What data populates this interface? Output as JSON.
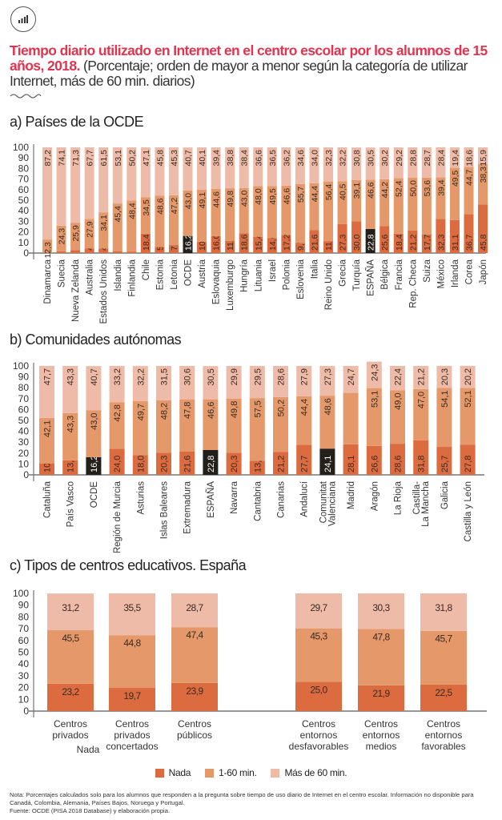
{
  "header": {
    "icon": "bar-chart-icon",
    "title_highlight": "Tiempo diario utilizado en Internet en el centro escolar por los alumnos de 15 años, 2018.",
    "title_rest": " (Porcentaje; orden de mayor a menor según la categoría de utilizar Internet, más de 60 min. diarios)"
  },
  "colors": {
    "nada": "#dc6b40",
    "min_1_60": "#e5996a",
    "mas_60": "#efbba9",
    "highlight": "#231f1a",
    "title_accent": "#e3344f"
  },
  "legend": {
    "items": [
      {
        "label": "Nada",
        "key": "nada"
      },
      {
        "label": "1-60 min.",
        "key": "min_1_60"
      },
      {
        "label": "Más de 60 min.",
        "key": "mas_60"
      }
    ]
  },
  "notes": {
    "nota": "Nota: Porcentajes calculados solo para los alumnos que responden a la pregunta sobre tiempo de uso diario de Internet en el centro escolar. Información no disponible para Canadá, Colombia, Alemania, Países Bajos, Noruega y Portugal.",
    "fuente": "Fuente: OCDE (PISA 2018 Database) y elaboración propia."
  },
  "chart_data": [
    {
      "type": "bar",
      "stacked": true,
      "title": "a) Países de la OCDE",
      "ylim": [
        0,
        100
      ],
      "yticks": [
        0,
        10,
        20,
        30,
        40,
        50,
        60,
        70,
        80,
        90,
        100
      ],
      "categories": [
        "Dinamarca",
        "Suecia",
        "Nueva Zelanda",
        "Australia",
        "Estados Unidos",
        "Islandia",
        "Finlandia",
        "Chile",
        "Estonia",
        "Letonia",
        "OCDE",
        "Austria",
        "Eslovaquia",
        "Luxemburgo",
        "Hungría",
        "Lituania",
        "Israel",
        "Polonia",
        "Eslovenia",
        "Italia",
        "Reino Unido",
        "Grecia",
        "Turquía",
        "ESPAÑA",
        "Bélgica",
        "Francia",
        "Rep. Checa",
        "Suiza",
        "México",
        "Irlanda",
        "Corea",
        "Japón"
      ],
      "highlight": [
        "OCDE",
        "ESPAÑA"
      ],
      "series": [
        {
          "name": "Nada",
          "values": [
            0.5,
            1.6,
            2.8,
            4.4,
            4.4,
            1.5,
            1.4,
            18.4,
            5.6,
            7.5,
            16.2,
            10.8,
            16.0,
            11.5,
            18.6,
            15.4,
            14.0,
            17.2,
            9.7,
            21.6,
            11.3,
            27.3,
            30.0,
            22.8,
            25.6,
            18.4,
            21.2,
            17.7,
            32.3,
            31.1,
            36.7,
            45.8
          ],
          "labels": [
            null,
            null,
            null,
            "4,4",
            "4,4",
            null,
            null,
            "18,4",
            "5,6",
            "7,5",
            "16,2",
            "10,8",
            "16,0",
            "11,5",
            "18,6",
            "15,4",
            "14,0",
            "17,2",
            "9,7",
            "21,6",
            "11,3",
            "27,3",
            "30,0",
            "22,8",
            "25,6",
            "18,4",
            "21,2",
            "17,7",
            "32,3",
            "31,1",
            "36,7",
            "45,8"
          ]
        },
        {
          "name": "1-60 min.",
          "values": [
            12.3,
            24.3,
            25.9,
            27.9,
            34.1,
            45.4,
            48.4,
            34.5,
            48.6,
            47.2,
            43.0,
            49.1,
            44.6,
            49.8,
            43.0,
            48.0,
            49.5,
            46.6,
            55.7,
            44.4,
            56.4,
            40.5,
            39.1,
            46.6,
            44.2,
            52.4,
            50.0,
            53.6,
            39.4,
            49.5,
            44.7,
            38.3
          ],
          "labels": [
            "12,3",
            "24,3",
            "25,9",
            "27,9",
            "34,1",
            "45,4",
            "48,4",
            "34,5",
            "48,6",
            "47,2",
            "43,0",
            "49,1",
            "44,6",
            "49,8",
            "43,0",
            "48,0",
            "49,5",
            "46,6",
            "55,7",
            "44,4",
            "56,4",
            "40,5",
            "39,1",
            "46,6",
            "44,2",
            "52,4",
            "50,0",
            "53,6",
            "39,4",
            "49,5",
            "44,7",
            "38,3"
          ]
        },
        {
          "name": "Más de 60 min.",
          "values": [
            87.2,
            74.1,
            71.3,
            67.7,
            61.5,
            53.1,
            50.2,
            47.1,
            45.8,
            45.3,
            40.7,
            40.1,
            39.4,
            38.8,
            38.4,
            36.6,
            36.5,
            36.2,
            34.6,
            34.0,
            32.3,
            32.2,
            30.8,
            30.5,
            30.2,
            29.2,
            28.8,
            28.7,
            28.4,
            19.4,
            18.6,
            15.9
          ],
          "labels": [
            "87,2",
            "74,1",
            "71,3",
            "67,7",
            "61,5",
            "53,1",
            "50,2",
            "47,1",
            "45,8",
            "45,3",
            "40,7",
            "40,1",
            "39,4",
            "38,8",
            "38,4",
            "36,6",
            "36,5",
            "36,2",
            "34,6",
            "34,0",
            "32,3",
            "32,2",
            "30,8",
            "30,5",
            "30,2",
            "29,2",
            "28,8",
            "28,7",
            "28,4",
            "19,4",
            "18,6",
            "15,9"
          ]
        }
      ]
    },
    {
      "type": "bar",
      "stacked": true,
      "title": "b) Comunidades autónomas",
      "ylim": [
        0,
        100
      ],
      "yticks": [
        0,
        10,
        20,
        30,
        40,
        50,
        60,
        70,
        80,
        90,
        100
      ],
      "categories": [
        "Cataluña",
        "País Vasco",
        "OCDE",
        "Región de Murcia",
        "Asturias",
        "Islas Baleares",
        "Extremadura",
        "ESPAÑA",
        "Navarra",
        "Cantabria",
        "Canarias",
        "Andalucí",
        "Comunitat Valenciana",
        "Madrid",
        "Aragón",
        "La Rioja",
        "Castilla-La Mancha",
        "Galicia",
        "Castilla y León"
      ],
      "highlight": [
        "OCDE",
        "ESPAÑA",
        "Comunitat Valenciana"
      ],
      "series": [
        {
          "name": "Nada",
          "values": [
            10.3,
            13.4,
            16.2,
            24.0,
            18.0,
            20.3,
            21.6,
            22.8,
            20.3,
            13.0,
            21.2,
            27.7,
            24.1,
            28.1,
            26.6,
            28.6,
            31.8,
            25.7,
            27.8
          ],
          "labels": [
            "10,3",
            "13,4",
            "16,2",
            "24,0",
            "18,0",
            "20,3",
            "21,6",
            "22,8",
            "20,3",
            "13,0",
            "21,2",
            "27,7",
            "24,1",
            "28,1",
            "26,6",
            "28,6",
            "31,8",
            "25,7",
            "27,8"
          ]
        },
        {
          "name": "1-60 min.",
          "values": [
            42.1,
            43.3,
            43.0,
            42.8,
            49.7,
            48.2,
            47.8,
            46.6,
            49.8,
            57.5,
            50.2,
            44.4,
            48.6,
            47.2,
            53.1,
            49.0,
            47.0,
            54.1,
            52.1
          ],
          "labels": [
            "42,1",
            "43,3",
            "43,0",
            "42,8",
            "49,7",
            "48,2",
            "47,8",
            "46,6",
            "49,8",
            "57,5",
            "50,2",
            "44,4",
            "48,6",
            null,
            "53,1",
            "49,0",
            "47,0",
            "54,1",
            "52,1"
          ]
        },
        {
          "name": "Más de 60 min.",
          "values": [
            47.7,
            43.3,
            40.7,
            33.2,
            32.2,
            31.5,
            30.6,
            30.5,
            29.9,
            29.5,
            28.6,
            27.9,
            27.3,
            24.7,
            24.3,
            22.4,
            21.2,
            20.3,
            20.2
          ],
          "labels": [
            "47,7",
            "43,3",
            "40,7",
            "33,2",
            "32,2",
            "31,5",
            "30,6",
            "30,5",
            "29,9",
            "29,5",
            "28,6",
            "27,9",
            "27,3",
            "24,7",
            "24,3",
            "22,4",
            "21,2",
            "20,3",
            "20,2"
          ]
        }
      ]
    },
    {
      "type": "bar",
      "stacked": true,
      "title": "c) Tipos de centros educativos. España",
      "ylim": [
        0,
        100
      ],
      "yticks": [
        0,
        10,
        20,
        30,
        40,
        50,
        60,
        70,
        80,
        90,
        100
      ],
      "categories": [
        "Centros privados",
        "Centros privados concertados",
        "Centros públicos",
        "Centros entornos desfavorables",
        "Centros entornos medios",
        "Centros entornos favorables"
      ],
      "category_lines": [
        [
          "Centros",
          "privados"
        ],
        [
          "Centros",
          "privados",
          "concertados"
        ],
        [
          "Centros",
          "públicos"
        ],
        [
          "Centros",
          "entornos",
          "desfavorables"
        ],
        [
          "Centros",
          "entornos",
          "medios"
        ],
        [
          "Centros",
          "entornos",
          "favorables"
        ]
      ],
      "stray_label": "Nada",
      "series": [
        {
          "name": "Nada",
          "values": [
            23.2,
            19.7,
            23.9,
            25.0,
            21.9,
            22.5
          ],
          "labels": [
            "23,2",
            "19,7",
            "23,9",
            "25,0",
            "21,9",
            "22,5"
          ]
        },
        {
          "name": "1-60 min.",
          "values": [
            45.5,
            44.8,
            47.4,
            45.3,
            47.8,
            45.7
          ],
          "labels": [
            "45,5",
            "44,8",
            "47,4",
            "45,3",
            "47,8",
            "45,7"
          ]
        },
        {
          "name": "Más de 60 min.",
          "values": [
            31.2,
            35.5,
            28.7,
            29.7,
            30.3,
            31.8
          ],
          "labels": [
            "31,2",
            "35,5",
            "28,7",
            "29,7",
            "30,3",
            "31,8"
          ]
        }
      ]
    }
  ]
}
